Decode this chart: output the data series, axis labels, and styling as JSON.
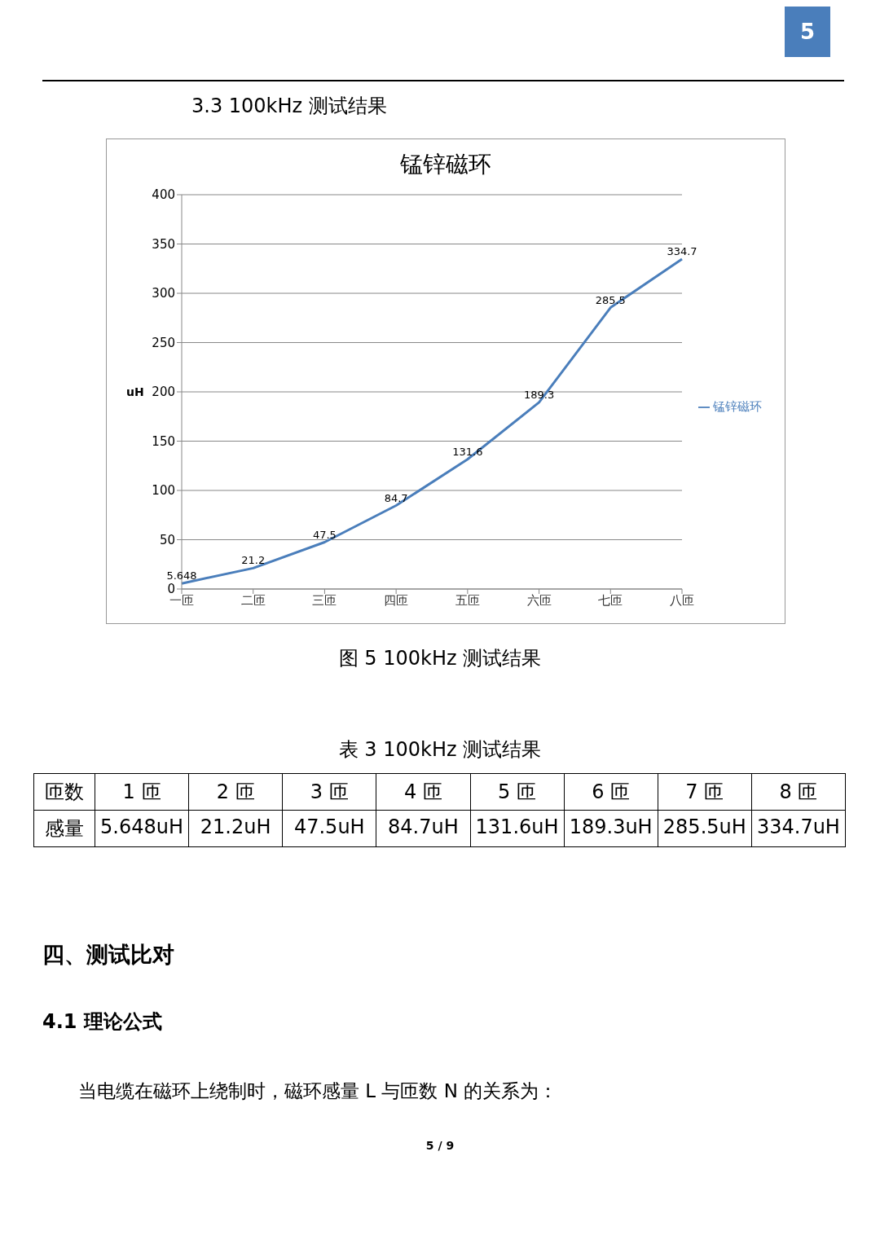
{
  "chart_data": {
    "type": "line",
    "title": "锰锌磁环",
    "ylabel": "uH",
    "categories": [
      "一匝",
      "二匝",
      "三匝",
      "四匝",
      "五匝",
      "六匝",
      "七匝",
      "八匝"
    ],
    "series": [
      {
        "name": "锰锌磁环",
        "color": "#4a7ebb",
        "values": [
          5.648,
          21.2,
          47.5,
          84.7,
          131.6,
          189.3,
          285.5,
          334.7
        ]
      }
    ],
    "ylim": [
      0,
      400
    ],
    "yticks": [
      0,
      50,
      100,
      150,
      200,
      250,
      300,
      350,
      400
    ],
    "grid": "y",
    "legend": "right",
    "data_labels": true,
    "marker": "none",
    "line_style": "solid",
    "annotations": [
      "5",
      "3.3 100kHz 测试结果",
      "图 5 100kHz 测试结果",
      "表 3 100kHz 测试结果",
      "匝数",
      "1 匝",
      "2 匝",
      "3 匝",
      "4 匝",
      "5 匝",
      "6 匝",
      "7 匝",
      "8 匝",
      "感量",
      "5.648uH",
      "21.2uH",
      "47.5uH",
      "84.7uH",
      "131.6uH",
      "189.3uH",
      "285.5uH",
      "334.7uH",
      "四、测试比对",
      "4.1 理论公式",
      "当电缆在磁环上绕制时，磁环感量 L 与匝数 N 的关系为：",
      "5 / 9"
    ]
  }
}
